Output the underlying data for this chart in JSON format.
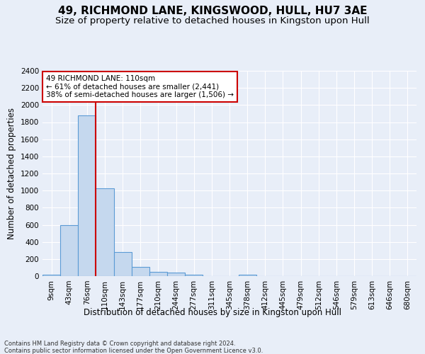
{
  "title": "49, RICHMOND LANE, KINGSWOOD, HULL, HU7 3AE",
  "subtitle": "Size of property relative to detached houses in Kingston upon Hull",
  "xlabel": "Distribution of detached houses by size in Kingston upon Hull",
  "ylabel": "Number of detached properties",
  "footer_line1": "Contains HM Land Registry data © Crown copyright and database right 2024.",
  "footer_line2": "Contains public sector information licensed under the Open Government Licence v3.0.",
  "bin_labels": [
    "9sqm",
    "43sqm",
    "76sqm",
    "110sqm",
    "143sqm",
    "177sqm",
    "210sqm",
    "244sqm",
    "277sqm",
    "311sqm",
    "345sqm",
    "378sqm",
    "412sqm",
    "445sqm",
    "479sqm",
    "512sqm",
    "546sqm",
    "579sqm",
    "613sqm",
    "646sqm",
    "680sqm"
  ],
  "bar_values": [
    20,
    600,
    1880,
    1030,
    285,
    110,
    48,
    38,
    20,
    0,
    0,
    20,
    0,
    0,
    0,
    0,
    0,
    0,
    0,
    0,
    0
  ],
  "bar_color": "#c5d8ee",
  "bar_edge_color": "#5b9bd5",
  "red_line_bin_index": 3,
  "red_line_color": "#cc0000",
  "annotation_text": "49 RICHMOND LANE: 110sqm\n← 61% of detached houses are smaller (2,441)\n38% of semi-detached houses are larger (1,506) →",
  "annotation_box_color": "#ffffff",
  "annotation_box_edge": "#cc0000",
  "ylim": [
    0,
    2400
  ],
  "yticks": [
    0,
    200,
    400,
    600,
    800,
    1000,
    1200,
    1400,
    1600,
    1800,
    2000,
    2200,
    2400
  ],
  "background_color": "#e8eef8",
  "grid_color": "#ffffff",
  "title_fontsize": 11,
  "subtitle_fontsize": 9.5,
  "xlabel_fontsize": 8.5,
  "ylabel_fontsize": 8.5,
  "tick_fontsize": 7.5,
  "annotation_fontsize": 7.5,
  "footer_fontsize": 6
}
